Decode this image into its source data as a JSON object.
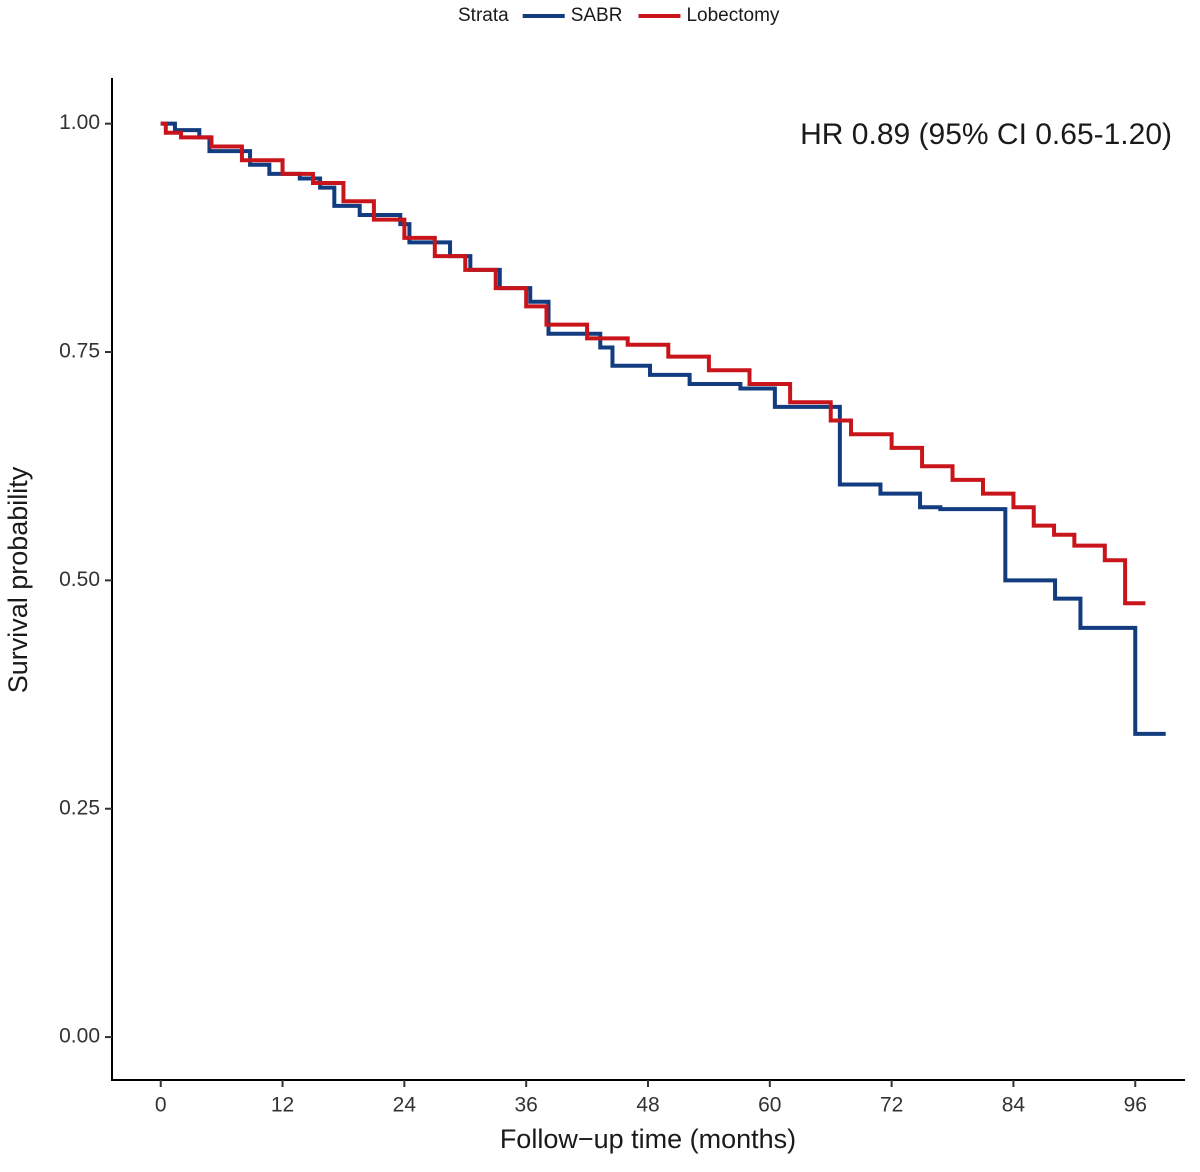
{
  "chart_data": {
    "type": "line",
    "step": "post",
    "legend_title": "Strata",
    "legend_position": "top",
    "annotation": "HR 0.89 (95% CI 0.65-1.20)",
    "x_label": "Follow−up time (months)",
    "y_label": "Survival probability",
    "xlim": [
      -4.8,
      100.9
    ],
    "ylim": [
      -0.047,
      1.05
    ],
    "xticks": [
      0,
      12,
      24,
      36,
      48,
      60,
      72,
      84,
      96
    ],
    "yticks": [
      {
        "value": 0,
        "label": "0.00"
      },
      {
        "value": 0.25,
        "label": "0.25"
      },
      {
        "value": 0.5,
        "label": "0.50"
      },
      {
        "value": 0.75,
        "label": "0.75"
      },
      {
        "value": 1,
        "label": "1.00"
      }
    ],
    "series": [
      {
        "name": "SABR",
        "color": "#123c7f",
        "x": [
          0,
          1.4,
          3.8,
          4.8,
          8.8,
          10.7,
          13.7,
          15.7,
          17.1,
          19.6,
          23.6,
          24.5,
          28.5,
          30.5,
          33.4,
          36.4,
          38.2,
          43.3,
          44.5,
          48.2,
          52.1,
          57.1,
          60.5,
          66.9,
          70.9,
          74.8,
          76.8,
          83.2,
          88.1,
          90.6,
          96,
          99
        ],
        "values": [
          1.0,
          0.993,
          0.985,
          0.97,
          0.955,
          0.945,
          0.94,
          0.93,
          0.91,
          0.9,
          0.89,
          0.87,
          0.855,
          0.84,
          0.82,
          0.805,
          0.77,
          0.755,
          0.735,
          0.725,
          0.715,
          0.71,
          0.69,
          0.605,
          0.595,
          0.58,
          0.578,
          0.5,
          0.48,
          0.448,
          0.332,
          0.332
        ]
      },
      {
        "name": "Lobectomy",
        "color": "#c8151b",
        "x": [
          0,
          0.5,
          2,
          5,
          8,
          12,
          15,
          18,
          21,
          24,
          27,
          30,
          33,
          36,
          38,
          42,
          46,
          50,
          54,
          58,
          62,
          66,
          68,
          72,
          75,
          78,
          81,
          84,
          86,
          88,
          90,
          93,
          95,
          97
        ],
        "values": [
          1.0,
          0.99,
          0.985,
          0.975,
          0.96,
          0.945,
          0.935,
          0.915,
          0.895,
          0.875,
          0.855,
          0.84,
          0.82,
          0.8,
          0.78,
          0.765,
          0.758,
          0.745,
          0.73,
          0.715,
          0.695,
          0.675,
          0.66,
          0.645,
          0.625,
          0.61,
          0.595,
          0.58,
          0.56,
          0.55,
          0.538,
          0.522,
          0.475,
          0.475
        ]
      }
    ]
  }
}
